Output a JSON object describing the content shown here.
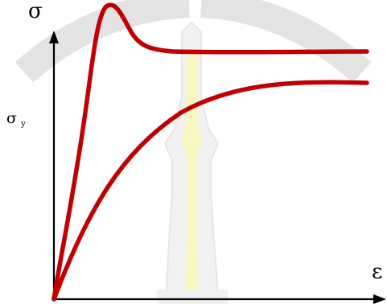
{
  "diagram": {
    "y_axis_symbol": "σ",
    "x_axis_symbol": "ε",
    "yield_label": {
      "main": "σ",
      "subscript": "y"
    },
    "colors": {
      "curve": "#c00000",
      "axis": "#000000",
      "watermark_outline": "#e2e2e2",
      "watermark_fill": "#fbf6c4"
    },
    "curves": [
      {
        "name": "",
        "shape": "upper yield point peak then flat plateau"
      },
      {
        "name": "",
        "shape": "smooth monotonic rise to plateau"
      }
    ]
  }
}
